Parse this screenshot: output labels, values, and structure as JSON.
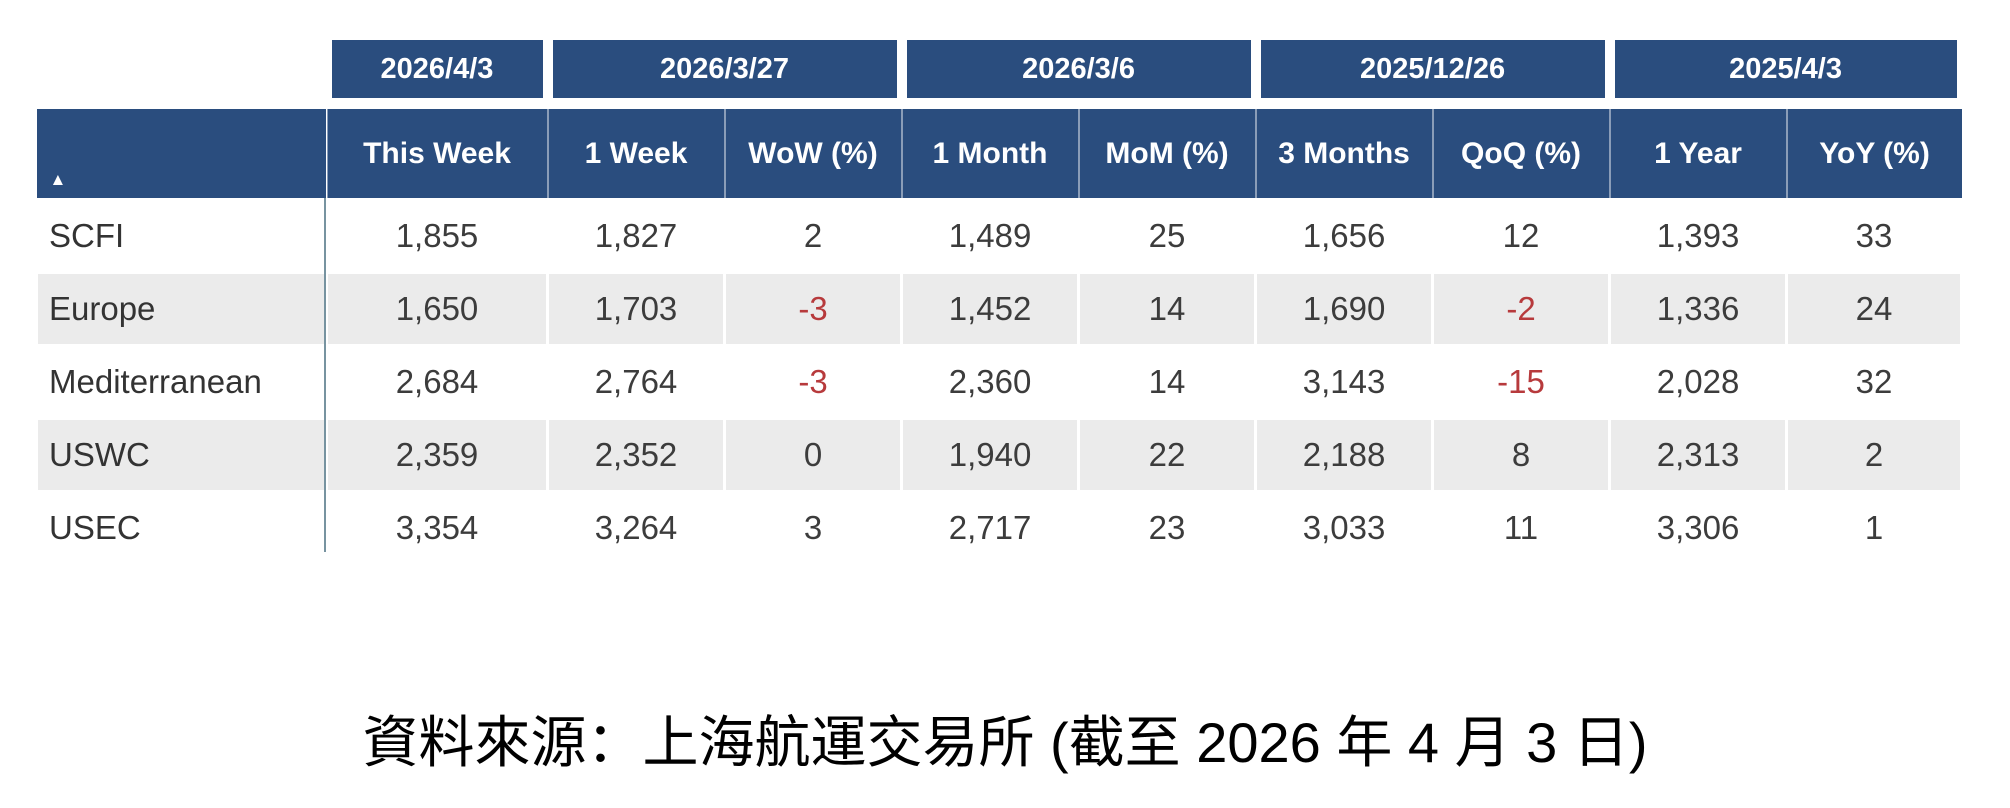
{
  "colors": {
    "header_bg": "#2a4d7e",
    "stripe": "#ebebeb",
    "negative": "#b73a3c",
    "value_text": "#3c3c3c",
    "divider": "#7793a0"
  },
  "sort_icon_glyph": "▲",
  "caption": "資料來源：上海航運交易所 (截至 2026 年 4 月 3 日)",
  "chart_data": {
    "type": "table",
    "date_groups": [
      {
        "label": "2026/4/3",
        "span": 1
      },
      {
        "label": "2026/3/27",
        "span": 2
      },
      {
        "label": "2026/3/6",
        "span": 2
      },
      {
        "label": "2025/12/26",
        "span": 2
      },
      {
        "label": "2025/4/3",
        "span": 2
      }
    ],
    "columns": [
      "This Week",
      "1 Week",
      "WoW (%)",
      "1 Month",
      "MoM (%)",
      "3 Months",
      "QoQ (%)",
      "1 Year",
      "YoY (%)"
    ],
    "rows": [
      {
        "label": "SCFI",
        "values": [
          "1,855",
          "1,827",
          "2",
          "1,489",
          "25",
          "1,656",
          "12",
          "1,393",
          "33"
        ]
      },
      {
        "label": "Europe",
        "values": [
          "1,650",
          "1,703",
          "-3",
          "1,452",
          "14",
          "1,690",
          "-2",
          "1,336",
          "24"
        ]
      },
      {
        "label": "Mediterranean",
        "values": [
          "2,684",
          "2,764",
          "-3",
          "2,360",
          "14",
          "3,143",
          "-15",
          "2,028",
          "32"
        ]
      },
      {
        "label": "USWC",
        "values": [
          "2,359",
          "2,352",
          "0",
          "1,940",
          "22",
          "2,188",
          "8",
          "2,313",
          "2"
        ]
      },
      {
        "label": "USEC",
        "values": [
          "3,354",
          "3,264",
          "3",
          "2,717",
          "23",
          "3,033",
          "11",
          "3,306",
          "1"
        ]
      }
    ]
  }
}
